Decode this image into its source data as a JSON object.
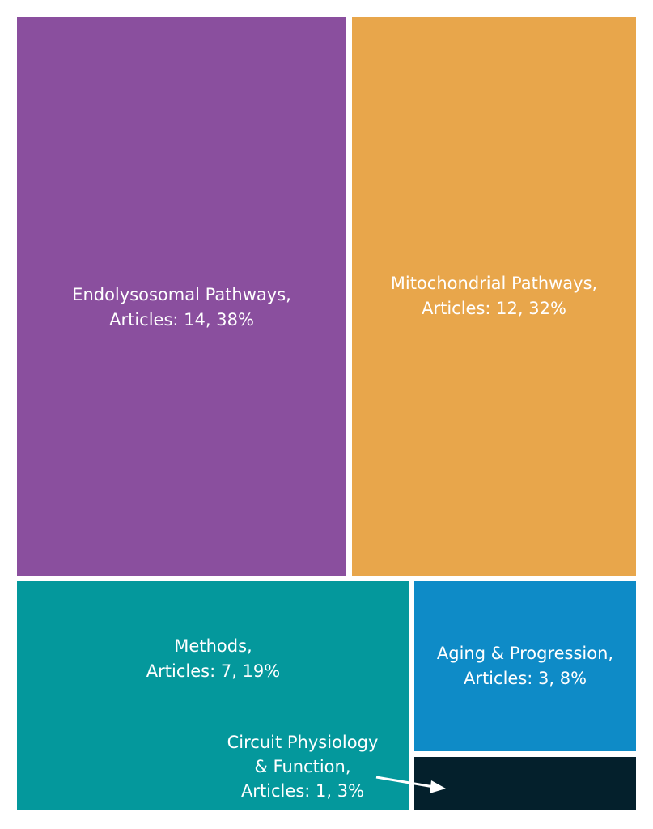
{
  "chart_data": {
    "type": "treemap",
    "categories": [
      "Endolysosomal Pathways",
      "Mitochondrial Pathways",
      "Methods",
      "Aging & Progression",
      "Circuit Physiology & Function"
    ],
    "values": [
      14,
      12,
      7,
      3,
      1
    ],
    "percentages": [
      38,
      32,
      19,
      8,
      3
    ],
    "value_label": "Articles",
    "colors": [
      "#8a4f9e",
      "#e8a64b",
      "#04989c",
      "#0e8bc7",
      "#04202c"
    ],
    "labels": [
      {
        "line1": "Endolysosomal Pathways,",
        "line2": "Articles: 14, 38%"
      },
      {
        "line1": "Mitochondrial Pathways,",
        "line2": "Articles: 12, 32%"
      },
      {
        "line1": "Methods,",
        "line2": "Articles: 7, 19%"
      },
      {
        "line1": "Aging & Progression,",
        "line2": "Articles: 3, 8%"
      },
      {
        "line1": "Circuit Physiology",
        "line2": "& Function,",
        "line3": "Articles: 1, 3%"
      }
    ],
    "title": "",
    "legend": "none",
    "grid": false,
    "callout": "arrow from Circuit Physiology label to its tile"
  }
}
